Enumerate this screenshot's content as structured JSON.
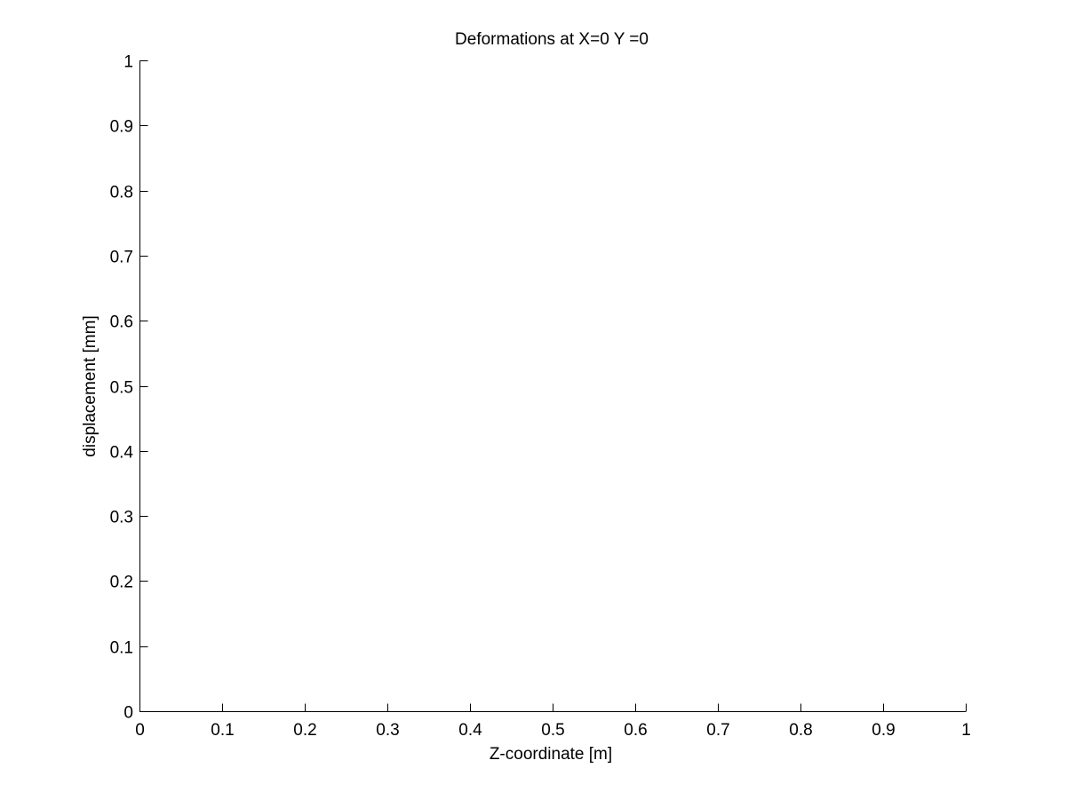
{
  "chart_data": {
    "type": "line",
    "title": "Deformations at X=0 Y =0",
    "xlabel": "Z-coordinate [m]",
    "ylabel": "displacement [mm]",
    "xlim": [
      0,
      1
    ],
    "ylim": [
      0,
      1
    ],
    "xticks": [
      "0",
      "0.1",
      "0.2",
      "0.3",
      "0.4",
      "0.5",
      "0.6",
      "0.7",
      "0.8",
      "0.9",
      "1"
    ],
    "yticks": [
      "0",
      "0.1",
      "0.2",
      "0.3",
      "0.4",
      "0.5",
      "0.6",
      "0.7",
      "0.8",
      "0.9",
      "1"
    ],
    "grid": false,
    "box": false,
    "series": []
  }
}
